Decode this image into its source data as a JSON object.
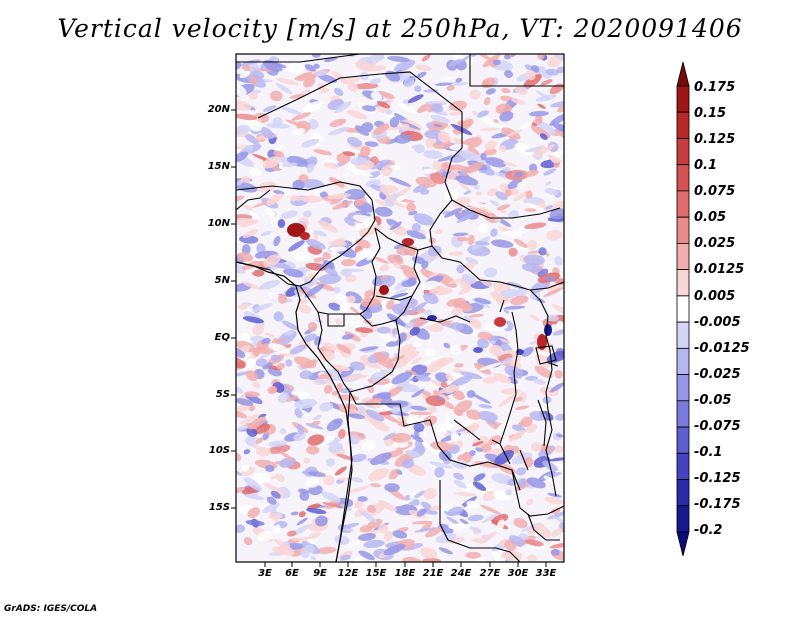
{
  "title": "Vertical velocity [m/s] at 250hPa, VT: 2020091406",
  "footer": "GrADS: IGES/COLA",
  "map": {
    "variable": "Vertical velocity",
    "units": "m/s",
    "level": "250hPa",
    "valid_time": "2020091406",
    "lat_labels": [
      "20N",
      "15N",
      "10N",
      "5N",
      "EQ",
      "5S",
      "10S",
      "15S"
    ],
    "lon_labels": [
      "3E",
      "6E",
      "9E",
      "12E",
      "15E",
      "18E",
      "21E",
      "24E",
      "27E",
      "30E",
      "33E"
    ]
  },
  "colorbar": {
    "labels": [
      "0.175",
      "0.15",
      "0.125",
      "0.1",
      "0.075",
      "0.05",
      "0.025",
      "0.0125",
      "0.005",
      "-0.005",
      "-0.0125",
      "-0.025",
      "-0.05",
      "-0.075",
      "-0.1",
      "-0.125",
      "-0.175",
      "-0.2"
    ],
    "colors": [
      "#7a0a0a",
      "#a01616",
      "#b82828",
      "#c83c3c",
      "#d65252",
      "#e06c6c",
      "#ea8a8a",
      "#f2aeae",
      "#f9d6d6",
      "#ffffff",
      "#d4d4f7",
      "#b6b6f0",
      "#9696e6",
      "#7a7add",
      "#5e5ed0",
      "#4444c0",
      "#2a2aa8",
      "#181890",
      "#0c0c78"
    ]
  }
}
